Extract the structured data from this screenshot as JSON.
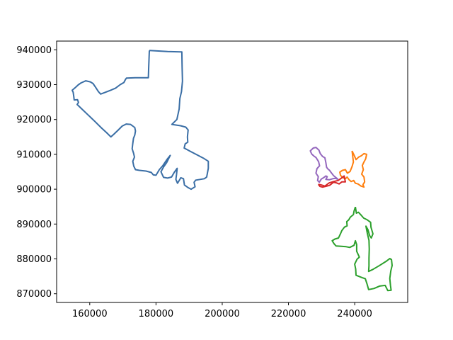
{
  "chart_data": {
    "type": "line",
    "title": "",
    "xlabel": "",
    "ylabel": "",
    "xlim": [
      150000,
      256000
    ],
    "ylim": [
      867500,
      942500
    ],
    "grid": false,
    "legend": "none",
    "x_ticks": [
      {
        "value": 160000,
        "label": "160000"
      },
      {
        "value": 180000,
        "label": "180000"
      },
      {
        "value": 200000,
        "label": "200000"
      },
      {
        "value": 220000,
        "label": "220000"
      },
      {
        "value": 240000,
        "label": "240000"
      }
    ],
    "y_ticks": [
      {
        "value": 870000,
        "label": "870000"
      },
      {
        "value": 880000,
        "label": "880000"
      },
      {
        "value": 890000,
        "label": "890000"
      },
      {
        "value": 900000,
        "label": "900000"
      },
      {
        "value": 910000,
        "label": "910000"
      },
      {
        "value": 920000,
        "label": "920000"
      },
      {
        "value": 930000,
        "label": "930000"
      },
      {
        "value": 940000,
        "label": "940000"
      }
    ],
    "series": [
      {
        "color": "#3a6ea5",
        "points": [
          [
            178000,
            939800
          ],
          [
            183500,
            939500
          ],
          [
            187800,
            939400
          ],
          [
            187900,
            935000
          ],
          [
            188000,
            931000
          ],
          [
            187700,
            928000
          ],
          [
            187200,
            926000
          ],
          [
            187000,
            923000
          ],
          [
            186300,
            920000
          ],
          [
            184800,
            918600
          ],
          [
            187500,
            918200
          ],
          [
            189000,
            917800
          ],
          [
            189700,
            917000
          ],
          [
            189500,
            915000
          ],
          [
            189600,
            913500
          ],
          [
            188800,
            913000
          ],
          [
            188500,
            911800
          ],
          [
            190500,
            910800
          ],
          [
            192500,
            909800
          ],
          [
            194500,
            908800
          ],
          [
            195800,
            908000
          ],
          [
            195800,
            906000
          ],
          [
            195300,
            903500
          ],
          [
            194600,
            903000
          ],
          [
            192000,
            902600
          ],
          [
            191500,
            902000
          ],
          [
            191800,
            900700
          ],
          [
            190600,
            900000
          ],
          [
            189600,
            900500
          ],
          [
            188600,
            901200
          ],
          [
            188300,
            903000
          ],
          [
            187500,
            903300
          ],
          [
            186500,
            901700
          ],
          [
            186000,
            902800
          ],
          [
            186200,
            904200
          ],
          [
            186400,
            906000
          ],
          [
            185500,
            904800
          ],
          [
            184700,
            903500
          ],
          [
            183500,
            903200
          ],
          [
            182300,
            903400
          ],
          [
            181500,
            905000
          ],
          [
            182300,
            906400
          ],
          [
            183200,
            907600
          ],
          [
            184300,
            909700
          ],
          [
            183300,
            908500
          ],
          [
            182100,
            906800
          ],
          [
            181000,
            905600
          ],
          [
            180000,
            904000
          ],
          [
            179200,
            904100
          ],
          [
            178600,
            904800
          ],
          [
            177000,
            905200
          ],
          [
            175000,
            905400
          ],
          [
            173800,
            905600
          ],
          [
            173300,
            906600
          ],
          [
            173000,
            908000
          ],
          [
            173500,
            909200
          ],
          [
            173200,
            910400
          ],
          [
            172800,
            911600
          ],
          [
            173000,
            913100
          ],
          [
            173200,
            914600
          ],
          [
            173600,
            915500
          ],
          [
            173800,
            916700
          ],
          [
            173600,
            917700
          ],
          [
            172300,
            918600
          ],
          [
            171000,
            918700
          ],
          [
            169800,
            918100
          ],
          [
            168500,
            916900
          ],
          [
            167300,
            915800
          ],
          [
            166400,
            915000
          ],
          [
            165100,
            916200
          ],
          [
            163500,
            917600
          ],
          [
            161500,
            919500
          ],
          [
            159500,
            921300
          ],
          [
            157500,
            923100
          ],
          [
            156200,
            924300
          ],
          [
            156600,
            924900
          ],
          [
            156300,
            925700
          ],
          [
            155300,
            925600
          ],
          [
            155200,
            926500
          ],
          [
            155000,
            927800
          ],
          [
            154700,
            928400
          ],
          [
            155700,
            929200
          ],
          [
            156600,
            930000
          ],
          [
            157400,
            930500
          ],
          [
            158800,
            931100
          ],
          [
            160200,
            930800
          ],
          [
            161000,
            930300
          ],
          [
            161800,
            929200
          ],
          [
            162600,
            928000
          ],
          [
            163300,
            927300
          ],
          [
            164700,
            927800
          ],
          [
            166300,
            928400
          ],
          [
            167800,
            929000
          ],
          [
            169200,
            930000
          ],
          [
            170300,
            930600
          ],
          [
            170800,
            931500
          ],
          [
            171100,
            931900
          ],
          [
            173700,
            932000
          ],
          [
            176500,
            932000
          ],
          [
            177700,
            932000
          ],
          [
            177800,
            935000
          ],
          [
            178000,
            939800
          ]
        ]
      },
      {
        "color": "#ff7f0e",
        "points": [
          [
            239200,
            911000
          ],
          [
            239800,
            909800
          ],
          [
            240400,
            908500
          ],
          [
            241200,
            909200
          ],
          [
            242000,
            909600
          ],
          [
            242800,
            910200
          ],
          [
            243600,
            910000
          ],
          [
            243300,
            908700
          ],
          [
            242800,
            907800
          ],
          [
            242300,
            906800
          ],
          [
            242600,
            905600
          ],
          [
            242100,
            904300
          ],
          [
            242800,
            903500
          ],
          [
            243000,
            902100
          ],
          [
            242500,
            901300
          ],
          [
            242800,
            900600
          ],
          [
            241900,
            900900
          ],
          [
            241000,
            901500
          ],
          [
            240200,
            901700
          ],
          [
            239700,
            902500
          ],
          [
            238900,
            902200
          ],
          [
            238300,
            902700
          ],
          [
            237700,
            903500
          ],
          [
            237200,
            903000
          ],
          [
            236400,
            903300
          ],
          [
            235700,
            904000
          ],
          [
            235500,
            904900
          ],
          [
            236300,
            905400
          ],
          [
            237200,
            905600
          ],
          [
            237800,
            904600
          ],
          [
            238600,
            905100
          ],
          [
            239200,
            906500
          ],
          [
            239600,
            907800
          ],
          [
            239400,
            909500
          ],
          [
            239200,
            911000
          ]
        ]
      },
      {
        "color": "#2ca02c",
        "points": [
          [
            240200,
            894900
          ],
          [
            240500,
            893100
          ],
          [
            241100,
            893400
          ],
          [
            241900,
            892600
          ],
          [
            242700,
            891700
          ],
          [
            243800,
            891200
          ],
          [
            244800,
            890500
          ],
          [
            244900,
            889100
          ],
          [
            245500,
            887200
          ],
          [
            245000,
            886000
          ],
          [
            244500,
            886700
          ],
          [
            244000,
            888400
          ],
          [
            243400,
            889400
          ],
          [
            243800,
            887400
          ],
          [
            244300,
            885300
          ],
          [
            244400,
            882800
          ],
          [
            244300,
            880200
          ],
          [
            244300,
            878000
          ],
          [
            244200,
            876400
          ],
          [
            245500,
            877000
          ],
          [
            247500,
            878100
          ],
          [
            249500,
            879300
          ],
          [
            250600,
            880100
          ],
          [
            251100,
            879800
          ],
          [
            251300,
            878100
          ],
          [
            250900,
            876500
          ],
          [
            250600,
            874400
          ],
          [
            250800,
            872300
          ],
          [
            251000,
            871000
          ],
          [
            250000,
            870900
          ],
          [
            249200,
            872400
          ],
          [
            247500,
            872200
          ],
          [
            245800,
            871500
          ],
          [
            244200,
            871200
          ],
          [
            243700,
            872900
          ],
          [
            243200,
            874300
          ],
          [
            242300,
            874600
          ],
          [
            241200,
            875000
          ],
          [
            240400,
            875300
          ],
          [
            240300,
            877100
          ],
          [
            240000,
            878500
          ],
          [
            240700,
            879900
          ],
          [
            241400,
            880500
          ],
          [
            240600,
            882200
          ],
          [
            240600,
            884100
          ],
          [
            240200,
            885200
          ],
          [
            239800,
            883900
          ],
          [
            238500,
            883300
          ],
          [
            237400,
            883500
          ],
          [
            236000,
            883600
          ],
          [
            234400,
            883700
          ],
          [
            233800,
            884300
          ],
          [
            233200,
            885200
          ],
          [
            234000,
            885700
          ],
          [
            235100,
            886000
          ],
          [
            235700,
            887200
          ],
          [
            236100,
            888100
          ],
          [
            236900,
            889100
          ],
          [
            237700,
            889500
          ],
          [
            237600,
            890700
          ],
          [
            238200,
            891200
          ],
          [
            238700,
            892000
          ],
          [
            239600,
            892700
          ],
          [
            239800,
            893700
          ],
          [
            240200,
            894900
          ]
        ]
      },
      {
        "color": "#d62728",
        "points": [
          [
            229000,
            901400
          ],
          [
            230000,
            901200
          ],
          [
            231000,
            900900
          ],
          [
            232300,
            901800
          ],
          [
            233600,
            902200
          ],
          [
            235000,
            902500
          ],
          [
            236000,
            903200
          ],
          [
            236800,
            903800
          ],
          [
            237000,
            902900
          ],
          [
            237200,
            902100
          ],
          [
            236100,
            902100
          ],
          [
            235300,
            901500
          ],
          [
            234500,
            901800
          ],
          [
            233600,
            902000
          ],
          [
            232400,
            901100
          ],
          [
            231200,
            900800
          ],
          [
            230300,
            900600
          ],
          [
            229500,
            900800
          ],
          [
            229000,
            901400
          ]
        ]
      },
      {
        "color": "#9467bd",
        "points": [
          [
            235000,
            902800
          ],
          [
            233600,
            903900
          ],
          [
            232800,
            904900
          ],
          [
            232400,
            905400
          ],
          [
            231800,
            905900
          ],
          [
            231500,
            906300
          ],
          [
            231300,
            907600
          ],
          [
            231000,
            909000
          ],
          [
            230300,
            909400
          ],
          [
            229600,
            910200
          ],
          [
            229200,
            911200
          ],
          [
            228300,
            912000
          ],
          [
            227500,
            911800
          ],
          [
            226600,
            911000
          ],
          [
            227000,
            910100
          ],
          [
            227700,
            909500
          ],
          [
            228300,
            909100
          ],
          [
            229100,
            907900
          ],
          [
            229400,
            906700
          ],
          [
            228600,
            905900
          ],
          [
            228300,
            904600
          ],
          [
            229000,
            903600
          ],
          [
            228800,
            902500
          ],
          [
            229300,
            902000
          ],
          [
            229900,
            902900
          ],
          [
            230600,
            903300
          ],
          [
            231300,
            903800
          ],
          [
            231700,
            903600
          ],
          [
            231300,
            902800
          ],
          [
            232300,
            902700
          ],
          [
            233400,
            903000
          ],
          [
            234200,
            903100
          ],
          [
            235000,
            902800
          ]
        ]
      }
    ]
  }
}
